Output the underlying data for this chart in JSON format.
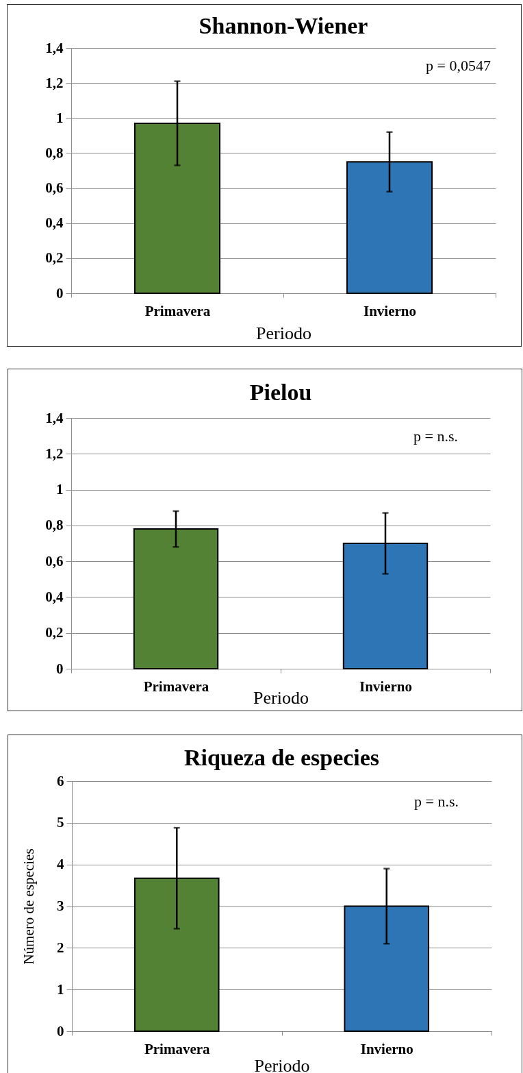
{
  "chart_data": [
    {
      "type": "bar",
      "title": "Shannon-Wiener",
      "xlabel": "Periodo",
      "categories": [
        "Primavera",
        "Invierno"
      ],
      "values": [
        0.97,
        0.75
      ],
      "errors": [
        0.24,
        0.17
      ],
      "colors": [
        "#548235",
        "#2e75b6"
      ],
      "ylim": [
        0,
        1.4
      ],
      "yticks": [
        0,
        {
          "value": 0.2,
          "label": "0,2"
        },
        {
          "value": 0.4,
          "label": "0,4"
        },
        {
          "value": 0.6,
          "label": "0,6"
        },
        {
          "value": 0.8,
          "label": "0,8"
        },
        1,
        {
          "value": 1.2,
          "label": "1,2"
        },
        {
          "value": 1.4,
          "label": "1,4"
        }
      ],
      "grid": "y",
      "annotations": [
        "p = 0,0547"
      ]
    },
    {
      "type": "bar",
      "title": "Pielou",
      "xlabel": "Periodo",
      "categories": [
        "Primavera",
        "Invierno"
      ],
      "values": [
        0.78,
        0.7
      ],
      "errors": [
        0.1,
        0.17
      ],
      "colors": [
        "#548235",
        "#2e75b6"
      ],
      "ylim": [
        0,
        1.4
      ],
      "yticks": [
        0,
        {
          "value": 0.2,
          "label": "0,2"
        },
        {
          "value": 0.4,
          "label": "0,4"
        },
        {
          "value": 0.6,
          "label": "0,6"
        },
        {
          "value": 0.8,
          "label": "0,8"
        },
        1,
        {
          "value": 1.2,
          "label": "1,2"
        },
        {
          "value": 1.4,
          "label": "1,4"
        }
      ],
      "grid": "y",
      "annotations": [
        "p = n.s."
      ]
    },
    {
      "type": "bar",
      "title": "Riqueza de especies",
      "xlabel": "Periodo",
      "ylabel": "Número de especies",
      "categories": [
        "Primavera",
        "Invierno"
      ],
      "values": [
        3.67,
        3.0
      ],
      "errors": [
        1.21,
        0.9
      ],
      "colors": [
        "#548235",
        "#2e75b6"
      ],
      "ylim": [
        0,
        6
      ],
      "yticks": [
        0,
        1,
        2,
        3,
        4,
        5,
        6
      ],
      "grid": "y",
      "annotations": [
        "p = n.s."
      ]
    }
  ]
}
